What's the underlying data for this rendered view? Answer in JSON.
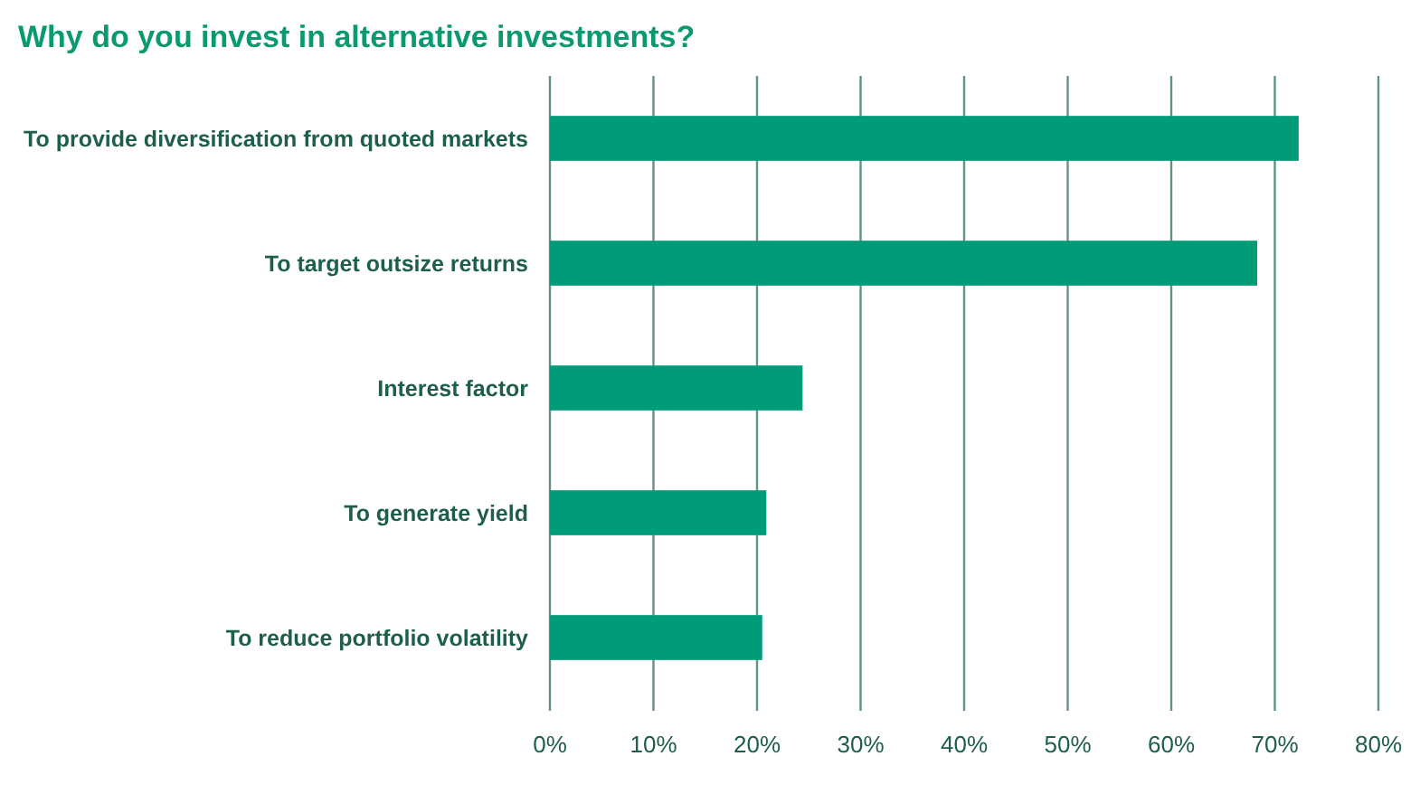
{
  "chart_data": {
    "type": "bar",
    "title": "Why do you invest in alternative investments?",
    "orientation": "horizontal",
    "categories": [
      "To provide diversification from quoted markets",
      "To target outsize returns",
      "Interest factor",
      "To generate yield",
      "To reduce portfolio volatility"
    ],
    "values": [
      72.3,
      68.3,
      24.4,
      20.9,
      20.5
    ],
    "color": "#009c77",
    "xlim": [
      0,
      80
    ],
    "xticks": [
      {
        "value": 0,
        "label": "0%"
      },
      {
        "value": 10,
        "label": "10%"
      },
      {
        "value": 20,
        "label": "20%"
      },
      {
        "value": 30,
        "label": "30%"
      },
      {
        "value": 40,
        "label": "40%"
      },
      {
        "value": 50,
        "label": "50%"
      },
      {
        "value": 60,
        "label": "60%"
      },
      {
        "value": 70,
        "label": "70%"
      },
      {
        "value": 80,
        "label": "80%"
      }
    ],
    "grid": "x"
  }
}
